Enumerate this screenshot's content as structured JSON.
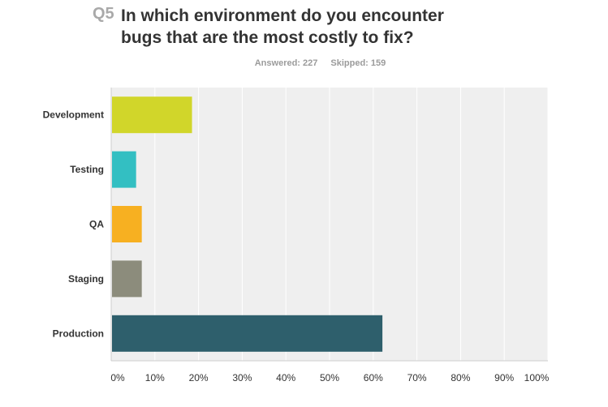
{
  "question": {
    "number": "Q5",
    "title_lines": [
      "In which environment do you encounter",
      "bugs that are the most costly to fix?"
    ],
    "answered": "Answered: 227",
    "skipped": "Skipped: 159"
  },
  "colors": {
    "plot_bg": "#efefef",
    "grid": "#ffffff",
    "axis": "#cccccc",
    "label": "#333333"
  },
  "chart_data": {
    "type": "bar",
    "orientation": "horizontal",
    "categories": [
      "Development",
      "Testing",
      "QA",
      "Staging",
      "Production"
    ],
    "values": [
      18.5,
      5.7,
      7.0,
      7.0,
      62.1
    ],
    "colors": [
      "#d1d62a",
      "#33bfc2",
      "#f7b021",
      "#8c8c7c",
      "#2e5f6c"
    ],
    "xlim": [
      0,
      100
    ],
    "xticks": [
      "0%",
      "10%",
      "20%",
      "30%",
      "40%",
      "50%",
      "60%",
      "70%",
      "80%",
      "90%",
      "100%"
    ],
    "grid": true,
    "legend": "none"
  }
}
